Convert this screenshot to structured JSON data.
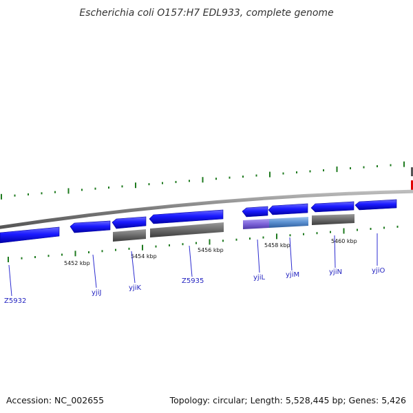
{
  "title": "Escherichia coli O157:H7 EDL933, complete genome",
  "footer": {
    "accession": "Accession: NC_002655",
    "summary": "Topology: circular; Length: 5,528,445 bp; Genes: 5,426"
  },
  "colors": {
    "gene_blue": "#1a1aff",
    "gene_blue_dark": "#0000b0",
    "gray_track": "#6b6b6b",
    "purple_feature": "#7b62d8",
    "steelblue_feature": "#5a8fd0",
    "backbone": "#888888",
    "tick_green": "#1e7a1e",
    "label_line": "#2a2ad0",
    "red_marker": "#e00000"
  },
  "scale_ticks": [
    {
      "label": "5452 kbp"
    },
    {
      "label": "5454 kbp"
    },
    {
      "label": "5456 kbp"
    },
    {
      "label": "5458 kbp"
    },
    {
      "label": "5460 kbp"
    }
  ],
  "genes": [
    {
      "name": "Z5932"
    },
    {
      "name": "yjiJ"
    },
    {
      "name": "yjiK"
    },
    {
      "name": "Z5935"
    },
    {
      "name": "yjiL"
    },
    {
      "name": "yjiM"
    },
    {
      "name": "yjiN"
    },
    {
      "name": "yjiO"
    }
  ]
}
